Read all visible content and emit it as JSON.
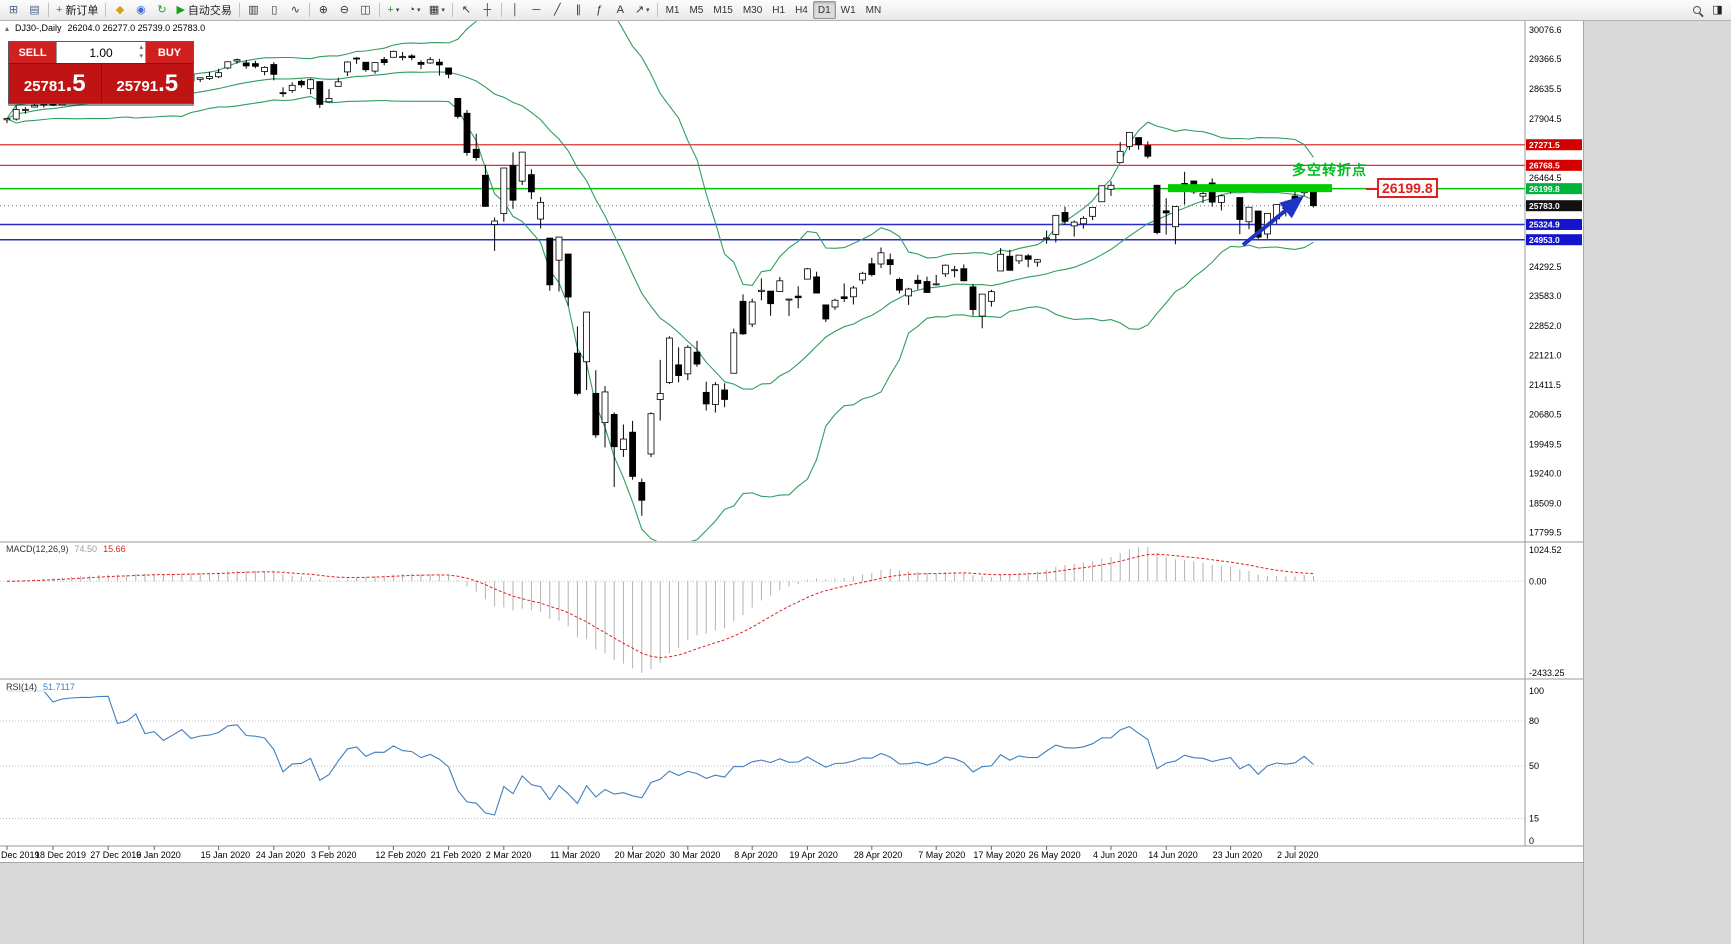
{
  "toolbar": {
    "groups": [
      {
        "name": "new-chart",
        "glyph": "⊞",
        "color": "#46648c"
      },
      {
        "name": "profiles",
        "glyph": "▤",
        "color": "#46648c"
      },
      {
        "sep": true
      },
      {
        "name": "new-order",
        "glyph": "+",
        "color": "#1a9c1a",
        "label": "新订单"
      },
      {
        "sep": true
      },
      {
        "name": "metaeditor",
        "glyph": "◆",
        "color": "#d4a017"
      },
      {
        "name": "accounts",
        "glyph": "◉",
        "color": "#3b6fd4"
      },
      {
        "name": "refresh",
        "glyph": "↻",
        "color": "#2a9c2a"
      },
      {
        "name": "autotrading",
        "glyph": "▶",
        "color": "#18a018",
        "label": "自动交易"
      },
      {
        "sep": true
      },
      {
        "name": "bar-chart",
        "glyph": "▥",
        "color": "#333333"
      },
      {
        "name": "candle-chart",
        "glyph": "▯",
        "color": "#333333"
      },
      {
        "name": "line-chart",
        "glyph": "∿",
        "color": "#333333"
      },
      {
        "sep": true
      },
      {
        "name": "zoom-in",
        "glyph": "⊕",
        "color": "#333333"
      },
      {
        "name": "zoom-out",
        "glyph": "⊖",
        "color": "#333333"
      },
      {
        "name": "tile-windows",
        "glyph": "◫",
        "color": "#333333"
      },
      {
        "sep": true
      },
      {
        "name": "indicators",
        "glyph": "+",
        "color": "#1a9c1a",
        "caret": true
      },
      {
        "name": "periods",
        "glyph": "◔",
        "color": "#333333",
        "caret": true
      },
      {
        "name": "templates",
        "glyph": "▦",
        "color": "#333333",
        "caret": true
      },
      {
        "sep": true
      },
      {
        "name": "cursor",
        "glyph": "↖",
        "color": "#333333"
      },
      {
        "name": "crosshair",
        "glyph": "┼",
        "color": "#333333"
      },
      {
        "sep": true
      },
      {
        "name": "vertical-line",
        "glyph": "│",
        "color": "#333333"
      },
      {
        "name": "horizontal-line",
        "glyph": "─",
        "color": "#333333"
      },
      {
        "name": "trendline",
        "glyph": "╱",
        "color": "#333333"
      },
      {
        "name": "channel",
        "glyph": "∥",
        "color": "#333333"
      },
      {
        "name": "fibonacci",
        "glyph": "ƒ",
        "color": "#333333"
      },
      {
        "name": "text-label",
        "glyph": "A",
        "color": "#333333"
      },
      {
        "name": "arrows",
        "glyph": "↗",
        "color": "#333333",
        "caret": true
      },
      {
        "sep": true
      }
    ],
    "timeframes": [
      "M1",
      "M5",
      "M15",
      "M30",
      "H1",
      "H4",
      "D1",
      "W1",
      "MN"
    ],
    "active_timeframe": "D1",
    "right_buttons": [
      {
        "name": "search",
        "magnifier": true
      },
      {
        "name": "chart-windows",
        "glyph": "◨"
      }
    ]
  },
  "chart": {
    "symbol_period": "DJ30-,Daily",
    "ohlc_values": "26204.0 26277.0 25739.0 25783.0",
    "annotation_text": "多空转折点",
    "annotation_price": "26199.8",
    "y_axis_ticks": [
      "30076.6",
      "29366.5",
      "28635.5",
      "27904.5",
      "26464.5",
      "24292.5",
      "23583.0",
      "22852.0",
      "22121.0",
      "21411.5",
      "20680.5",
      "19949.5",
      "19240.0",
      "18509.0",
      "17799.5"
    ],
    "price_tags": [
      {
        "label": "27271.5",
        "value": 27271.5,
        "color": "#d40000"
      },
      {
        "label": "26768.5",
        "value": 26768.5,
        "color": "#d40000"
      },
      {
        "label": "26199.8",
        "value": 26199.8,
        "color": "#00b33c"
      },
      {
        "label": "25783.0",
        "value": 25783.0,
        "color": "#111111"
      },
      {
        "label": "25324.9",
        "value": 25324.9,
        "color": "#1414cc"
      },
      {
        "label": "24953.0",
        "value": 24953.0,
        "color": "#1414cc"
      }
    ],
    "h_lines": [
      {
        "value": 27271.5,
        "color": "#e03030",
        "width": 1.2
      },
      {
        "value": 26768.5,
        "color": "#e03030",
        "width": 1.2
      },
      {
        "value": 26199.8,
        "color": "#00c400",
        "width": 1.5
      },
      {
        "value": 25783.0,
        "color": "#777777",
        "width": 1,
        "dash": "1,3"
      },
      {
        "value": 25324.9,
        "color": "#2828c8",
        "width": 1.5
      },
      {
        "value": 24953.0,
        "color": "#2828c8",
        "width": 1.5
      }
    ],
    "x_ticks": [
      {
        "label": "Dec 2019",
        "i": 0
      },
      {
        "label": "18 Dec 2019",
        "i": 5
      },
      {
        "label": "27 Dec 2019",
        "i": 11
      },
      {
        "label": "6 Jan 2020",
        "i": 16
      },
      {
        "label": "15 Jan 2020",
        "i": 23
      },
      {
        "label": "24 Jan 2020",
        "i": 29
      },
      {
        "label": "3 Feb 2020",
        "i": 35
      },
      {
        "label": "12 Feb 2020",
        "i": 42
      },
      {
        "label": "21 Feb 2020",
        "i": 48
      },
      {
        "label": "2 Mar 2020",
        "i": 54
      },
      {
        "label": "11 Mar 2020",
        "i": 61
      },
      {
        "label": "20 Mar 2020",
        "i": 68
      },
      {
        "label": "30 Mar 2020",
        "i": 74
      },
      {
        "label": "8 Apr 2020",
        "i": 81
      },
      {
        "label": "19 Apr 2020",
        "i": 87
      },
      {
        "label": "28 Apr 2020",
        "i": 94
      },
      {
        "label": "7 May 2020",
        "i": 101
      },
      {
        "label": "17 May 2020",
        "i": 107
      },
      {
        "label": "26 May 2020",
        "i": 113
      },
      {
        "label": "4 Jun 2020",
        "i": 120
      },
      {
        "label": "14 Jun 2020",
        "i": 126
      },
      {
        "label": "23 Jun 2020",
        "i": 133
      },
      {
        "label": "2 Jul 2020",
        "i": 140
      }
    ]
  },
  "trade_panel": {
    "sell_label": "SELL",
    "buy_label": "BUY",
    "volume": "1.00",
    "sell_price_main": "25781",
    "sell_price_big": ".5",
    "buy_price_main": "25791",
    "buy_price_big": ".5"
  },
  "macd_panel": {
    "title": "MACD(12,26,9)",
    "value_main": "74.50",
    "value_signal": "15.66",
    "axis_top": "1024.52",
    "axis_zero": "0.00",
    "axis_bottom": "-2433.25"
  },
  "rsi_panel": {
    "title": "RSI(14)",
    "value": "51.7117",
    "axis_labels": [
      {
        "label": "100",
        "v": 100
      },
      {
        "label": "80",
        "v": 80
      },
      {
        "label": "50",
        "v": 50
      },
      {
        "label": "15",
        "v": 15
      },
      {
        "label": "0",
        "v": 0
      }
    ],
    "levels": [
      80,
      50,
      15
    ]
  },
  "chart_data": {
    "type": "candlestick",
    "symbol": "DJ30-",
    "period": "Daily",
    "ohlc_header": {
      "open": "26204.0",
      "high": "26277.0",
      "low": "25739.0",
      "close": "25783.0"
    },
    "y_range": [
      17720,
      30170
    ],
    "overlays": {
      "bollinger_bands": {
        "period": 20,
        "deviation": 2,
        "color": "#2f9e5f"
      }
    },
    "indicators": [
      {
        "name": "MACD",
        "params": "12,26,9",
        "last_values": [
          74.5,
          15.66
        ],
        "axis": [
          1024.52,
          0.0,
          -2433.25
        ]
      },
      {
        "name": "RSI",
        "params": "14",
        "last_value": 51.7117,
        "axis": [
          100,
          80,
          50,
          15,
          0
        ]
      }
    ],
    "ohlc": [
      [
        27880,
        27925,
        27800,
        27911
      ],
      [
        27898,
        28225,
        27860,
        28132
      ],
      [
        28123,
        28190,
        28029,
        28135
      ],
      [
        28191,
        28337,
        28191,
        28235
      ],
      [
        28250,
        28328,
        28180,
        28267
      ],
      [
        28278,
        28323,
        28214,
        28239
      ],
      [
        28245,
        28414,
        28245,
        28377
      ],
      [
        28426,
        28468,
        28376,
        28455
      ],
      [
        28479,
        28516,
        28430,
        28511
      ],
      [
        28535,
        28582,
        28503,
        28515
      ],
      [
        28539,
        28624,
        28535,
        28621
      ],
      [
        28675,
        28701,
        28608,
        28645
      ],
      [
        28654,
        28664,
        28428,
        28462
      ],
      [
        28414,
        28547,
        28376,
        28538
      ],
      [
        28639,
        28872,
        28565,
        28868
      ],
      [
        28554,
        28716,
        28500,
        28634
      ],
      [
        28465,
        28708,
        28418,
        28703
      ],
      [
        28639,
        28685,
        28565,
        28583
      ],
      [
        28556,
        28866,
        28522,
        28745
      ],
      [
        28845,
        28988,
        28844,
        28956
      ],
      [
        28991,
        29009,
        28820,
        28823
      ],
      [
        28869,
        28910,
        28802,
        28907
      ],
      [
        28890,
        29054,
        28850,
        28939
      ],
      [
        28931,
        29127,
        28897,
        29030
      ],
      [
        29145,
        29300,
        29113,
        29297
      ],
      [
        29314,
        29374,
        29247,
        29348
      ],
      [
        29269,
        29340,
        29128,
        29196
      ],
      [
        29252,
        29320,
        29140,
        29186
      ],
      [
        29058,
        29189,
        28967,
        29160
      ],
      [
        29230,
        29288,
        28843,
        28989
      ],
      [
        28542,
        28671,
        28440,
        28535
      ],
      [
        28594,
        28794,
        28542,
        28722
      ],
      [
        28820,
        28860,
        28668,
        28734
      ],
      [
        28640,
        28890,
        28504,
        28859
      ],
      [
        28813,
        28813,
        28169,
        28256
      ],
      [
        28320,
        28630,
        28302,
        28400
      ],
      [
        28697,
        28905,
        28697,
        28807
      ],
      [
        29049,
        29308,
        28950,
        29291
      ],
      [
        29388,
        29409,
        29246,
        29380
      ],
      [
        29286,
        29286,
        29056,
        29103
      ],
      [
        29069,
        29278,
        29008,
        29277
      ],
      [
        29352,
        29415,
        29210,
        29276
      ],
      [
        29406,
        29568,
        29406,
        29551
      ],
      [
        29413,
        29535,
        29332,
        29423
      ],
      [
        29440,
        29481,
        29333,
        29398
      ],
      [
        29282,
        29330,
        29117,
        29232
      ],
      [
        29267,
        29409,
        29246,
        29348
      ],
      [
        29287,
        29369,
        28960,
        29220
      ],
      [
        29146,
        29146,
        28893,
        28992
      ],
      [
        28403,
        28403,
        27912,
        27961
      ],
      [
        28040,
        28120,
        27003,
        27081
      ],
      [
        27160,
        27541,
        26883,
        26958
      ],
      [
        26526,
        26776,
        25753,
        25767
      ],
      [
        25325,
        25494,
        24681,
        25409
      ],
      [
        25591,
        26706,
        25392,
        26703
      ],
      [
        26763,
        27085,
        25707,
        25917
      ],
      [
        26383,
        27102,
        26286,
        27091
      ],
      [
        26542,
        26671,
        25943,
        26121
      ],
      [
        25457,
        25994,
        25227,
        25865
      ],
      [
        24992,
        24992,
        23707,
        23851
      ],
      [
        24453,
        25020,
        23690,
        25018
      ],
      [
        24604,
        24604,
        23328,
        23553
      ],
      [
        22184,
        22837,
        21154,
        21201
      ],
      [
        21973,
        23189,
        21285,
        23186
      ],
      [
        21202,
        21768,
        20117,
        20189
      ],
      [
        20488,
        21379,
        19882,
        21237
      ],
      [
        20688,
        20738,
        18918,
        19899
      ],
      [
        19830,
        20442,
        19650,
        20087
      ],
      [
        20254,
        20531,
        19094,
        19174
      ],
      [
        19028,
        19121,
        18214,
        18592
      ],
      [
        19722,
        20738,
        19649,
        20705
      ],
      [
        21050,
        22020,
        20538,
        21200
      ],
      [
        21468,
        22595,
        21427,
        22552
      ],
      [
        21898,
        22327,
        21469,
        21637
      ],
      [
        21678,
        22378,
        21522,
        22327
      ],
      [
        22208,
        22482,
        21852,
        21917
      ],
      [
        21227,
        21487,
        20784,
        20944
      ],
      [
        20930,
        21477,
        20735,
        21413
      ],
      [
        21285,
        21447,
        20863,
        21053
      ],
      [
        21693,
        22783,
        21693,
        22680
      ],
      [
        23449,
        23617,
        22634,
        22654
      ],
      [
        22893,
        23514,
        22819,
        23434
      ],
      [
        23690,
        24009,
        23473,
        23719
      ],
      [
        23698,
        23698,
        23096,
        23391
      ],
      [
        23690,
        24041,
        23690,
        23950
      ],
      [
        23504,
        23517,
        23094,
        23504
      ],
      [
        23576,
        23817,
        23278,
        23537
      ],
      [
        23991,
        24264,
        23991,
        24242
      ],
      [
        24046,
        24171,
        23690,
        23650
      ],
      [
        23362,
        23362,
        22942,
        23018
      ],
      [
        23310,
        23513,
        23241,
        23475
      ],
      [
        23560,
        23885,
        23432,
        23515
      ],
      [
        23560,
        23827,
        23371,
        23775
      ],
      [
        23969,
        24169,
        23868,
        24133
      ],
      [
        24366,
        24512,
        24055,
        24101
      ],
      [
        24360,
        24764,
        24261,
        24633
      ],
      [
        24466,
        24614,
        24099,
        24345
      ],
      [
        23985,
        24029,
        23645,
        23723
      ],
      [
        23581,
        23778,
        23361,
        23749
      ],
      [
        23963,
        24094,
        23739,
        23883
      ],
      [
        23934,
        24051,
        23661,
        23664
      ],
      [
        23865,
        24094,
        23834,
        23875
      ],
      [
        24120,
        24349,
        24047,
        24331
      ],
      [
        24215,
        24314,
        24036,
        24221
      ],
      [
        24245,
        24350,
        23940,
        23950
      ],
      [
        23803,
        23874,
        23096,
        23248
      ],
      [
        23089,
        23397,
        22790,
        23625
      ],
      [
        23450,
        23730,
        23320,
        23685
      ],
      [
        24190,
        24747,
        24190,
        24597
      ],
      [
        24550,
        24710,
        24200,
        24206
      ],
      [
        24436,
        24577,
        24360,
        24576
      ],
      [
        24560,
        24602,
        24282,
        24474
      ],
      [
        24406,
        24481,
        24294,
        24465
      ],
      [
        24995,
        25176,
        24857,
        24995
      ],
      [
        25080,
        25560,
        24885,
        25548
      ],
      [
        25619,
        25758,
        25319,
        25400
      ],
      [
        25290,
        25420,
        25031,
        25383
      ],
      [
        25342,
        25526,
        25222,
        25475
      ],
      [
        25524,
        25743,
        25432,
        25742
      ],
      [
        25880,
        26270,
        25880,
        26270
      ],
      [
        26184,
        26384,
        26022,
        26282
      ],
      [
        26836,
        27338,
        26836,
        27111
      ],
      [
        27232,
        27580,
        27142,
        27572
      ],
      [
        27447,
        27447,
        27151,
        27272
      ],
      [
        27251,
        27355,
        26938,
        26990
      ],
      [
        26282,
        26294,
        25082,
        25128
      ],
      [
        25659,
        25965,
        25078,
        25606
      ],
      [
        25270,
        25772,
        24843,
        25763
      ],
      [
        26326,
        26611,
        25811,
        26290
      ],
      [
        26386,
        26400,
        26068,
        26120
      ],
      [
        26016,
        26154,
        25848,
        26080
      ],
      [
        26339,
        26451,
        25759,
        25871
      ],
      [
        25865,
        26059,
        25667,
        26025
      ],
      [
        26190,
        26297,
        26076,
        26156
      ],
      [
        25983,
        25983,
        25085,
        25446
      ],
      [
        25390,
        25746,
        25210,
        25746
      ],
      [
        25654,
        25654,
        24971,
        25016
      ],
      [
        25093,
        25601,
        24976,
        25596
      ],
      [
        25463,
        25813,
        25345,
        25813
      ],
      [
        25735,
        25905,
        25523,
        25735
      ],
      [
        26018,
        26205,
        25779,
        25827
      ],
      [
        26100,
        26306,
        26025,
        26287
      ],
      [
        26204,
        26277,
        25739,
        25783
      ]
    ]
  }
}
